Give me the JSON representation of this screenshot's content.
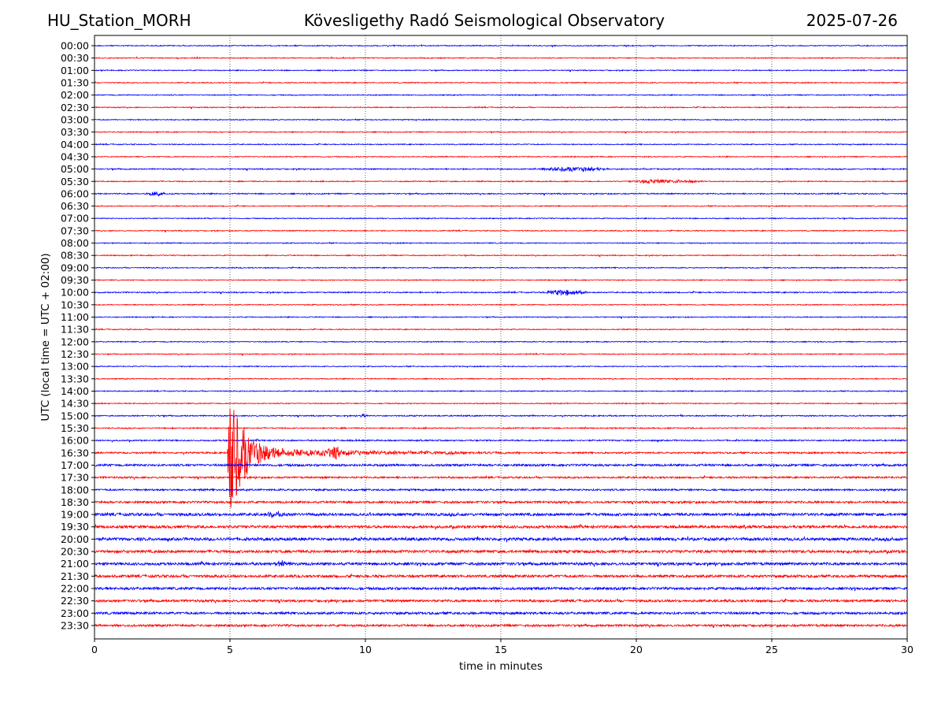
{
  "header": {
    "station": "HU_Station_MORH",
    "observatory": "Kövesligethy Radó Seismological Observatory",
    "date": "2025-07-26"
  },
  "chart_data": {
    "type": "line",
    "title": "Kövesligethy Radó Seismological Observatory",
    "xlabel": "time in minutes",
    "ylabel": "UTC (local time = UTC + 02:00)",
    "xlim": [
      0,
      30
    ],
    "x_ticks": [
      "0",
      "5",
      "10",
      "15",
      "20",
      "25",
      "30"
    ],
    "x_tick_values": [
      0,
      5,
      10,
      15,
      20,
      25,
      30
    ],
    "grid": "vertical-dotted",
    "colors": {
      "even_row": "#0000ff",
      "odd_row": "#ff0000",
      "grid": "#000000"
    },
    "rows": [
      "00:00",
      "00:30",
      "01:00",
      "01:30",
      "02:00",
      "02:30",
      "03:00",
      "03:30",
      "04:00",
      "04:30",
      "05:00",
      "05:30",
      "06:00",
      "06:30",
      "07:00",
      "07:30",
      "08:00",
      "08:30",
      "09:00",
      "09:30",
      "10:00",
      "10:30",
      "11:00",
      "11:30",
      "12:00",
      "12:30",
      "13:00",
      "13:30",
      "14:00",
      "14:30",
      "15:00",
      "15:30",
      "16:00",
      "16:30",
      "17:00",
      "17:30",
      "18:00",
      "18:30",
      "19:00",
      "19:30",
      "20:00",
      "20:30",
      "21:00",
      "21:30",
      "22:00",
      "22:30",
      "23:00",
      "23:30"
    ],
    "noise_level": [
      0.1,
      0.1,
      0.1,
      0.1,
      0.1,
      0.1,
      0.1,
      0.1,
      0.1,
      0.1,
      0.12,
      0.1,
      0.12,
      0.1,
      0.1,
      0.1,
      0.1,
      0.1,
      0.1,
      0.1,
      0.12,
      0.1,
      0.1,
      0.1,
      0.1,
      0.1,
      0.1,
      0.1,
      0.1,
      0.1,
      0.12,
      0.12,
      0.14,
      0.16,
      0.22,
      0.18,
      0.18,
      0.22,
      0.28,
      0.28,
      0.3,
      0.28,
      0.28,
      0.26,
      0.26,
      0.24,
      0.24,
      0.22
    ],
    "events": [
      {
        "row": "05:00",
        "start_min": 16.3,
        "end_min": 20.5,
        "amplitude": 0.35
      },
      {
        "row": "05:30",
        "start_min": 19.5,
        "end_min": 24.0,
        "amplitude": 0.3
      },
      {
        "row": "06:00",
        "start_min": 1.8,
        "end_min": 3.2,
        "amplitude": 0.35
      },
      {
        "row": "10:00",
        "start_min": 16.5,
        "end_min": 19.0,
        "amplitude": 0.45
      },
      {
        "row": "15:00",
        "start_min": 9.8,
        "end_min": 10.2,
        "amplitude": 0.35
      },
      {
        "row": "16:30",
        "start_min": 4.9,
        "end_min": 16.0,
        "amplitude": 8.0
      },
      {
        "row": "19:00",
        "start_min": 6.3,
        "end_min": 7.5,
        "amplitude": 0.4
      },
      {
        "row": "21:00",
        "start_min": 6.5,
        "end_min": 7.5,
        "amplitude": 0.45
      }
    ]
  }
}
